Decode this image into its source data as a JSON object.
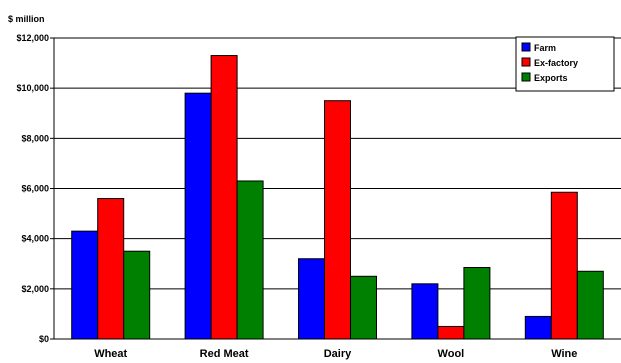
{
  "chart_data": {
    "type": "bar",
    "title": "",
    "ylabel": "$ million",
    "xlabel": "",
    "categories": [
      "Wheat",
      "Red Meat",
      "Dairy",
      "Wool",
      "Wine"
    ],
    "ylim": [
      0,
      12000
    ],
    "y_ticks": [
      0,
      2000,
      4000,
      6000,
      8000,
      10000,
      12000
    ],
    "y_tick_labels": [
      "$0",
      "$2,000",
      "$4,000",
      "$6,000",
      "$8,000",
      "$10,000",
      "$12,000"
    ],
    "grid": true,
    "legend_position": "top-right",
    "series": [
      {
        "name": "Farm",
        "color": "#0000ff",
        "values": [
          4300,
          9800,
          3200,
          2200,
          900
        ]
      },
      {
        "name": "Ex-factory",
        "color": "#ff0000",
        "values": [
          5600,
          11300,
          9500,
          500,
          5850
        ]
      },
      {
        "name": "Exports",
        "color": "#008000",
        "values": [
          3500,
          6300,
          2500,
          2850,
          2700
        ]
      }
    ]
  }
}
